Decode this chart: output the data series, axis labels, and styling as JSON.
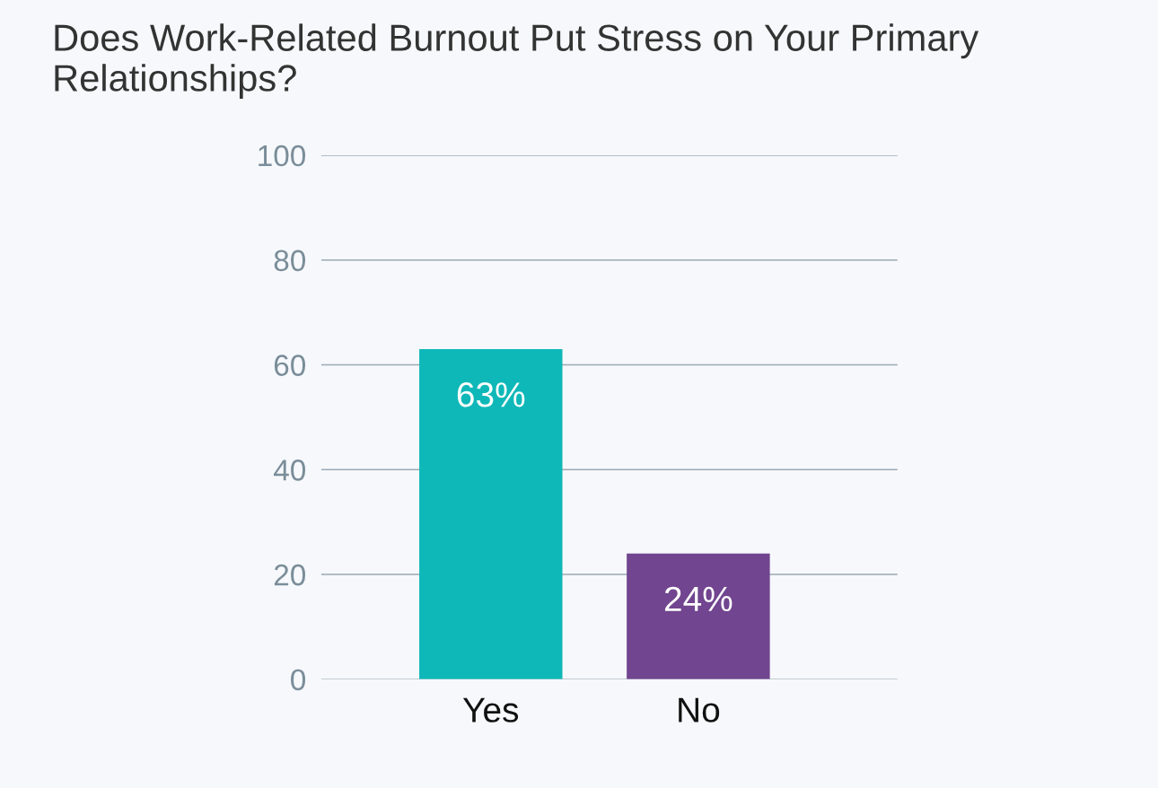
{
  "chart_data": {
    "type": "bar",
    "title": "Does Work-Related Burnout Put Stress on Your Primary Relationships?",
    "categories": [
      "Yes",
      "No"
    ],
    "values": [
      63,
      24
    ],
    "colors": [
      "#0fb8b8",
      "#71458f"
    ],
    "ylim": [
      0,
      100
    ],
    "yticks": [
      0,
      20,
      40,
      60,
      80,
      100
    ],
    "value_labels": [
      "63%",
      "24%"
    ],
    "grid": "y",
    "legend": false
  }
}
